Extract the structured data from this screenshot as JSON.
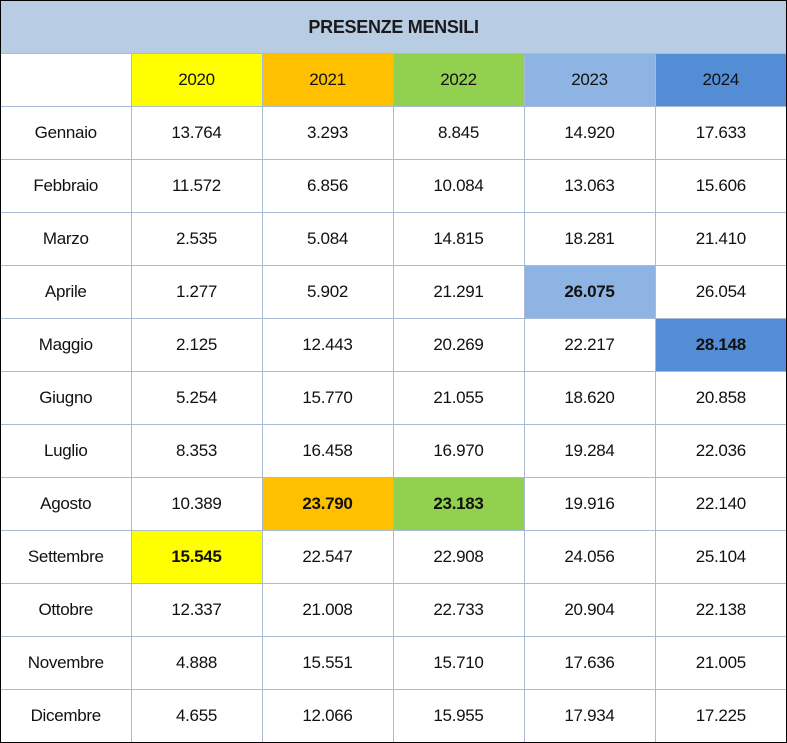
{
  "title": "PRESENZE MENSILI",
  "header": {
    "corner": "",
    "years": [
      {
        "label": "2020",
        "color": "#ffff00"
      },
      {
        "label": "2021",
        "color": "#ffc000"
      },
      {
        "label": "2022",
        "color": "#92d050"
      },
      {
        "label": "2023",
        "color": "#8db4e2"
      },
      {
        "label": "2024",
        "color": "#538dd5"
      }
    ]
  },
  "rows": [
    {
      "month": "Gennaio",
      "values": [
        "13.764",
        "3.293",
        "8.845",
        "14.920",
        "17.633"
      ]
    },
    {
      "month": "Febbraio",
      "values": [
        "11.572",
        "6.856",
        "10.084",
        "13.063",
        "15.606"
      ]
    },
    {
      "month": "Marzo",
      "values": [
        "2.535",
        "5.084",
        "14.815",
        "18.281",
        "21.410"
      ]
    },
    {
      "month": "Aprile",
      "values": [
        "1.277",
        "5.902",
        "21.291",
        "26.075",
        "26.054"
      ]
    },
    {
      "month": "Maggio",
      "values": [
        "2.125",
        "12.443",
        "20.269",
        "22.217",
        "28.148"
      ]
    },
    {
      "month": "Giugno",
      "values": [
        "5.254",
        "15.770",
        "21.055",
        "18.620",
        "20.858"
      ]
    },
    {
      "month": "Luglio",
      "values": [
        "8.353",
        "16.458",
        "16.970",
        "19.284",
        "22.036"
      ]
    },
    {
      "month": "Agosto",
      "values": [
        "10.389",
        "23.790",
        "23.183",
        "19.916",
        "22.140"
      ]
    },
    {
      "month": "Settembre",
      "values": [
        "15.545",
        "22.547",
        "22.908",
        "24.056",
        "25.104"
      ]
    },
    {
      "month": "Ottobre",
      "values": [
        "12.337",
        "21.008",
        "22.733",
        "20.904",
        "22.138"
      ]
    },
    {
      "month": "Novembre",
      "values": [
        "4.888",
        "15.551",
        "15.710",
        "17.636",
        "21.005"
      ]
    },
    {
      "month": "Dicembre",
      "values": [
        "4.655",
        "12.066",
        "15.955",
        "17.934",
        "17.225"
      ]
    }
  ],
  "yearly_max": [
    {
      "year": "2020",
      "month": "Settembre",
      "value": "15.545"
    },
    {
      "year": "2021",
      "month": "Agosto",
      "value": "23.790"
    },
    {
      "year": "2022",
      "month": "Agosto",
      "value": "23.183"
    },
    {
      "year": "2023",
      "month": "Aprile",
      "value": "26.075"
    },
    {
      "year": "2024",
      "month": "Maggio",
      "value": "28.148"
    }
  ]
}
